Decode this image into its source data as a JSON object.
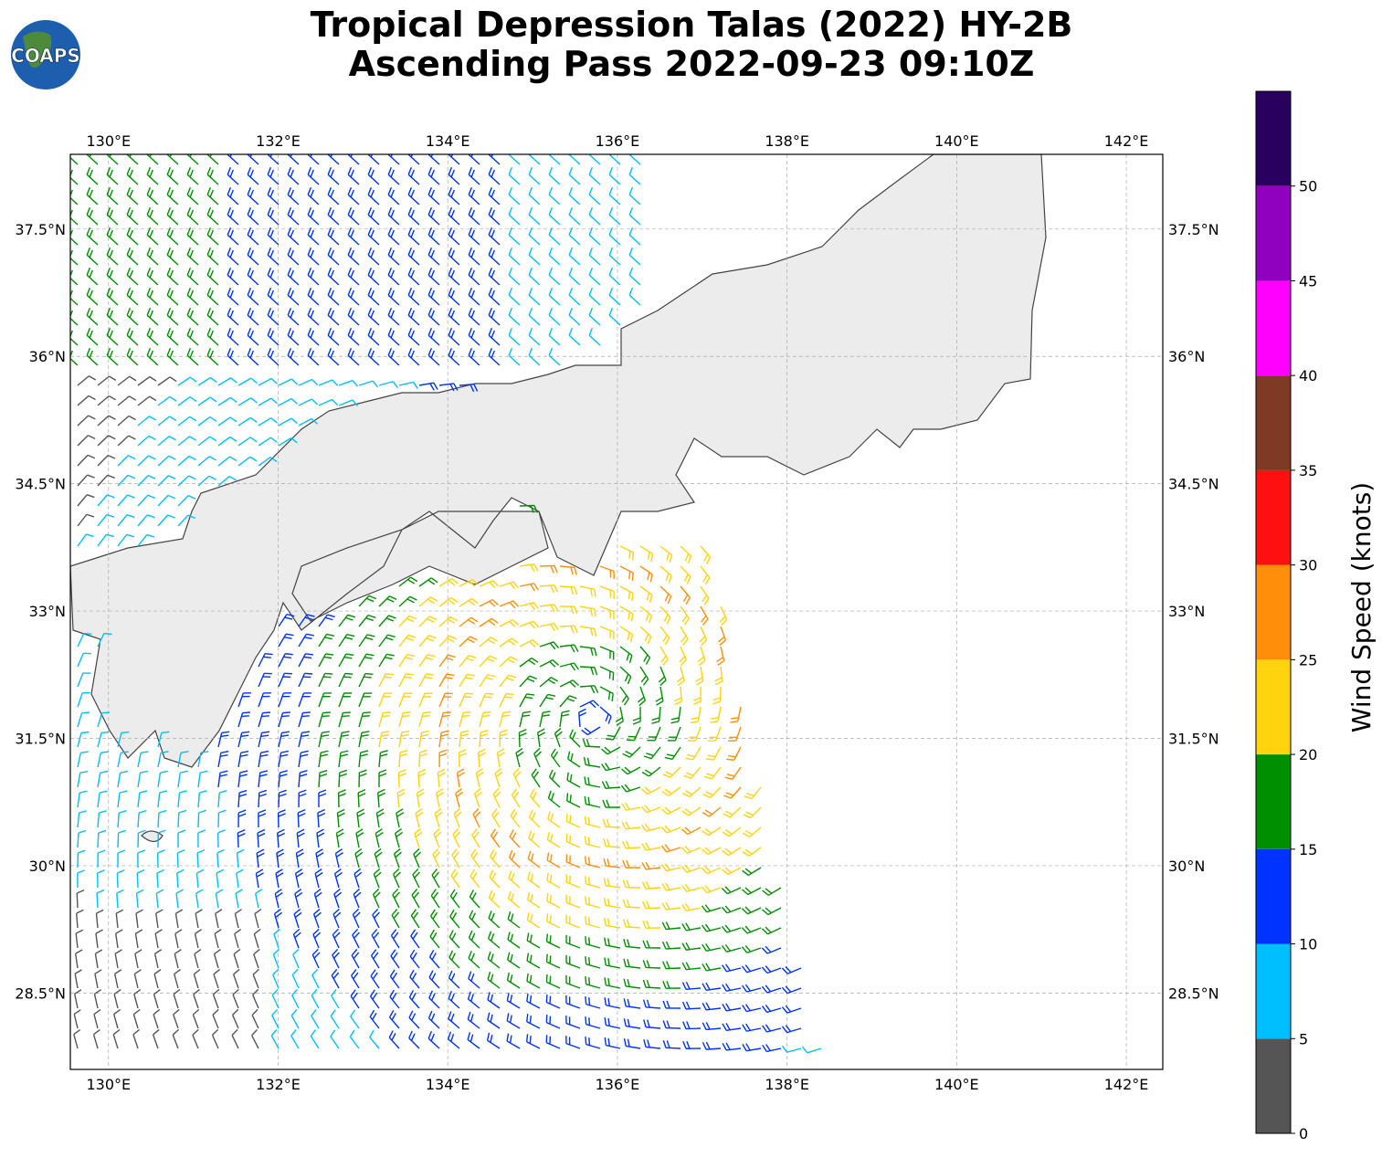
{
  "logo": "COAPS",
  "title": [
    "Tropical Depression Talas (2022) HY-2B",
    "Ascending Pass 2022-09-23 09:10Z"
  ],
  "map": {
    "xlim": [
      129.55,
      142.43
    ],
    "ylim": [
      27.6,
      38.38
    ],
    "xticks": [
      {
        "value": 130,
        "label": "130°E"
      },
      {
        "value": 132,
        "label": "132°E"
      },
      {
        "value": 134,
        "label": "134°E"
      },
      {
        "value": 136,
        "label": "136°E"
      },
      {
        "value": 138,
        "label": "138°E"
      },
      {
        "value": 140,
        "label": "140°E"
      },
      {
        "value": 142,
        "label": "142°E"
      }
    ],
    "yticks": [
      {
        "value": 28.5,
        "label": "28.5°N"
      },
      {
        "value": 30,
        "label": "30°N"
      },
      {
        "value": 31.5,
        "label": "31.5°N"
      },
      {
        "value": 33,
        "label": "33°N"
      },
      {
        "value": 34.5,
        "label": "34.5°N"
      },
      {
        "value": 36,
        "label": "36°N"
      },
      {
        "value": 37.5,
        "label": "37.5°N"
      }
    ]
  },
  "colorbar": {
    "label": "Wind Speed (knots)",
    "ylim": [
      0,
      55
    ],
    "yticks": [
      0,
      5,
      10,
      15,
      20,
      25,
      30,
      35,
      40,
      45,
      50
    ],
    "bounds": [
      0,
      5,
      10,
      15,
      20,
      25,
      30,
      35,
      40,
      45,
      50,
      55
    ],
    "colors": [
      "#555555",
      "#00bfff",
      "#0033ff",
      "#008f00",
      "#ffd30d",
      "#ff8f0a",
      "#ff1010",
      "#7f3a26",
      "#ff00ff",
      "#8f00bf",
      "#2a005e"
    ]
  }
}
